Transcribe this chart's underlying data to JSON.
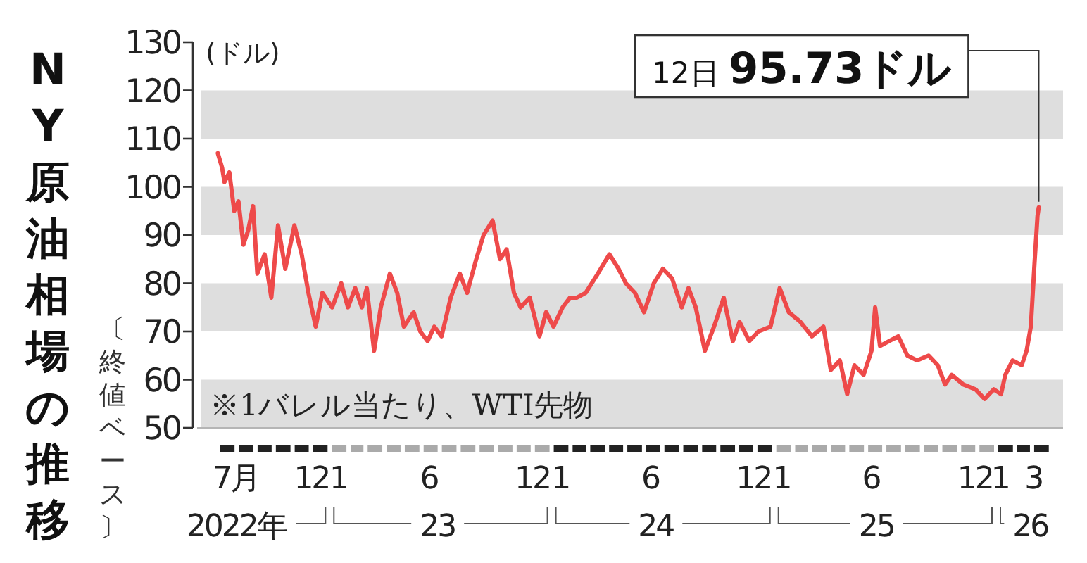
{
  "chart_data": {
    "type": "line",
    "title": "NY原油相場の推移",
    "subtitle": "〔終値ベース〕",
    "ylabel": "(ドル)",
    "x": [
      "2022-07-01",
      "2022-07-08",
      "2022-07-12",
      "2022-07-20",
      "2022-07-28",
      "2022-08-04",
      "2022-08-12",
      "2022-08-20",
      "2022-08-28",
      "2022-09-04",
      "2022-09-16",
      "2022-09-27",
      "2022-10-08",
      "2022-10-20",
      "2022-11-04",
      "2022-11-16",
      "2022-11-27",
      "2022-12-09",
      "2022-12-20",
      "2023-01-05",
      "2023-01-20",
      "2023-01-31",
      "2023-02-12",
      "2023-02-23",
      "2023-03-03",
      "2023-03-15",
      "2023-03-26",
      "2023-04-10",
      "2023-04-22",
      "2023-05-03",
      "2023-05-19",
      "2023-05-30",
      "2023-06-11",
      "2023-06-22",
      "2023-07-04",
      "2023-07-19",
      "2023-08-03",
      "2023-08-15",
      "2023-08-30",
      "2023-09-11",
      "2023-09-26",
      "2023-10-08",
      "2023-10-19",
      "2023-10-31",
      "2023-11-11",
      "2023-11-26",
      "2023-12-12",
      "2023-12-23",
      "2024-01-04",
      "2024-01-19",
      "2024-01-31",
      "2024-02-11",
      "2024-02-26",
      "2024-03-17",
      "2024-04-05",
      "2024-04-20",
      "2024-05-02",
      "2024-05-17",
      "2024-06-01",
      "2024-06-17",
      "2024-07-02",
      "2024-07-17",
      "2024-08-02",
      "2024-08-13",
      "2024-08-25",
      "2024-09-09",
      "2024-09-24",
      "2024-10-10",
      "2024-10-25",
      "2024-11-05",
      "2024-11-21",
      "2024-12-06",
      "2024-12-26",
      "2025-01-10",
      "2025-01-25",
      "2025-02-13",
      "2025-03-04",
      "2025-03-23",
      "2025-04-04",
      "2025-04-19",
      "2025-05-01",
      "2025-05-13",
      "2025-05-28",
      "2025-06-10",
      "2025-06-16",
      "2025-06-24",
      "2025-07-09",
      "2025-07-24",
      "2025-08-08",
      "2025-08-24",
      "2025-09-12",
      "2025-09-27",
      "2025-10-09",
      "2025-10-20",
      "2025-11-08",
      "2025-11-28",
      "2025-12-13",
      "2025-12-28",
      "2026-01-09",
      "2026-01-16",
      "2026-01-28",
      "2026-02-12",
      "2026-02-20",
      "2026-02-27",
      "2026-03-05",
      "2026-03-10",
      "2026-03-12"
    ],
    "series": [
      {
        "color": "#ee4a4a",
        "values": [
          107,
          104,
          101,
          103,
          95,
          97,
          88,
          91,
          96,
          82,
          86,
          77,
          92,
          83,
          92,
          86,
          78,
          71,
          78,
          75,
          80,
          75,
          79,
          75,
          79,
          66,
          75,
          82,
          78,
          71,
          74,
          70,
          68,
          71,
          69,
          77,
          82,
          78,
          85,
          90,
          93,
          85,
          87,
          78,
          75,
          77,
          69,
          74,
          71,
          75,
          77,
          77,
          78,
          82,
          86,
          83,
          80,
          78,
          74,
          80,
          83,
          81,
          75,
          79,
          75,
          66,
          71,
          77,
          68,
          72,
          68,
          70,
          71,
          79,
          74,
          72,
          69,
          71,
          62,
          64,
          57,
          63,
          61,
          66,
          75,
          67,
          68,
          69,
          65,
          64,
          65,
          63,
          59,
          61,
          59,
          58,
          56,
          58,
          57,
          61,
          64,
          63,
          66,
          71,
          84,
          94,
          95.73
        ]
      }
    ],
    "xlim": [
      "2022-05-28",
      "2026-04-21"
    ],
    "x2lim": [
      "2022-05-28",
      "2026-04-21"
    ],
    "ylim": [
      50,
      130
    ],
    "yticks": [
      50,
      60,
      70,
      80,
      90,
      100,
      110,
      120,
      130
    ],
    "xticks": [
      {
        "value": "2022-07-31",
        "label": "7月"
      },
      {
        "value": "2022-12-02",
        "label": "12"
      },
      {
        "value": "2023-01-15",
        "label": "1"
      },
      {
        "value": "2023-06-13",
        "label": "6"
      },
      {
        "value": "2023-11-30",
        "label": "12"
      },
      {
        "value": "2024-01-15",
        "label": "1"
      },
      {
        "value": "2024-06-11",
        "label": "6"
      },
      {
        "value": "2024-11-28",
        "label": "12"
      },
      {
        "value": "2025-01-13",
        "label": "1"
      },
      {
        "value": "2025-06-09",
        "label": "6"
      },
      {
        "value": "2025-11-27",
        "label": "12"
      },
      {
        "value": "2026-01-07",
        "label": "1"
      },
      {
        "value": "2026-03-03",
        "label": "3"
      }
    ],
    "x2ticks": [
      {
        "value": "2022-07-31",
        "label": "2022年"
      },
      {
        "value": "2023-06-27",
        "label": "23"
      },
      {
        "value": "2024-06-20",
        "label": "24"
      },
      {
        "value": "2025-06-18",
        "label": "25"
      },
      {
        "value": "2026-02-26",
        "label": "26"
      }
    ],
    "bands": [
      {
        "axis": "y",
        "from": 50,
        "to": 60,
        "color": "#dedede"
      },
      {
        "axis": "y",
        "from": 70,
        "to": 80,
        "color": "#dedede"
      },
      {
        "axis": "y",
        "from": 90,
        "to": 100,
        "color": "#dedede"
      },
      {
        "axis": "y",
        "from": 110,
        "to": 120,
        "color": "#dedede"
      }
    ],
    "annotations": [
      {
        "text": "12日 **95.73ドル**",
        "x": "2026-03-12",
        "y": 95.73
      },
      "※1バレル当たり、WTI先物"
    ]
  }
}
